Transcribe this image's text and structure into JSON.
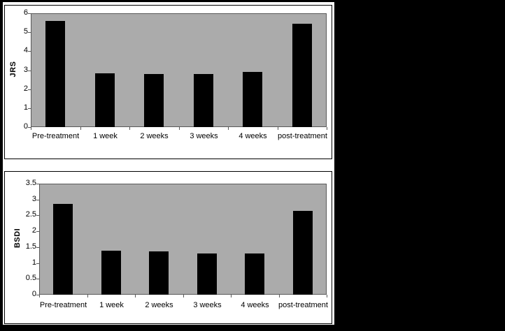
{
  "figure": {
    "description": "Two stacked grayscale bar charts of clinical scores over treatment timepoints",
    "colors": {
      "canvas_background": "#000000",
      "figure_background": "#ffffff",
      "plot_background": "#ababab",
      "bar_fill": "#000000",
      "panel_border": "#000000",
      "axis_line": "#595959",
      "text": "#000000"
    }
  },
  "chart_data": [
    {
      "type": "bar",
      "title": "",
      "ylabel": "JRS",
      "xlabel": "",
      "categories": [
        "Pre-treatment",
        "1 week",
        "2 weeks",
        "3 weeks",
        "4 weeks",
        "post-treatment"
      ],
      "values": [
        5.6,
        2.85,
        2.8,
        2.8,
        2.9,
        5.45
      ],
      "ylim": [
        0,
        6
      ],
      "ytick_step": 1,
      "ytick_labels": [
        "6",
        "5",
        "4",
        "3",
        "2",
        "1",
        "0"
      ],
      "grid": false,
      "legend": "none"
    },
    {
      "type": "bar",
      "title": "",
      "ylabel": "BSDI",
      "xlabel": "",
      "categories": [
        "Pre-treatment",
        "1 week",
        "2 weeks",
        "3 weeks",
        "4 weeks",
        "post-treatment"
      ],
      "values": [
        2.87,
        1.38,
        1.37,
        1.3,
        1.3,
        2.65
      ],
      "ylim": [
        0,
        3.5
      ],
      "ytick_step": 0.5,
      "ytick_labels": [
        "3.5",
        "3",
        "2.5",
        "2",
        "1.5",
        "1",
        "0.5",
        "0"
      ],
      "grid": false,
      "legend": "none"
    }
  ]
}
